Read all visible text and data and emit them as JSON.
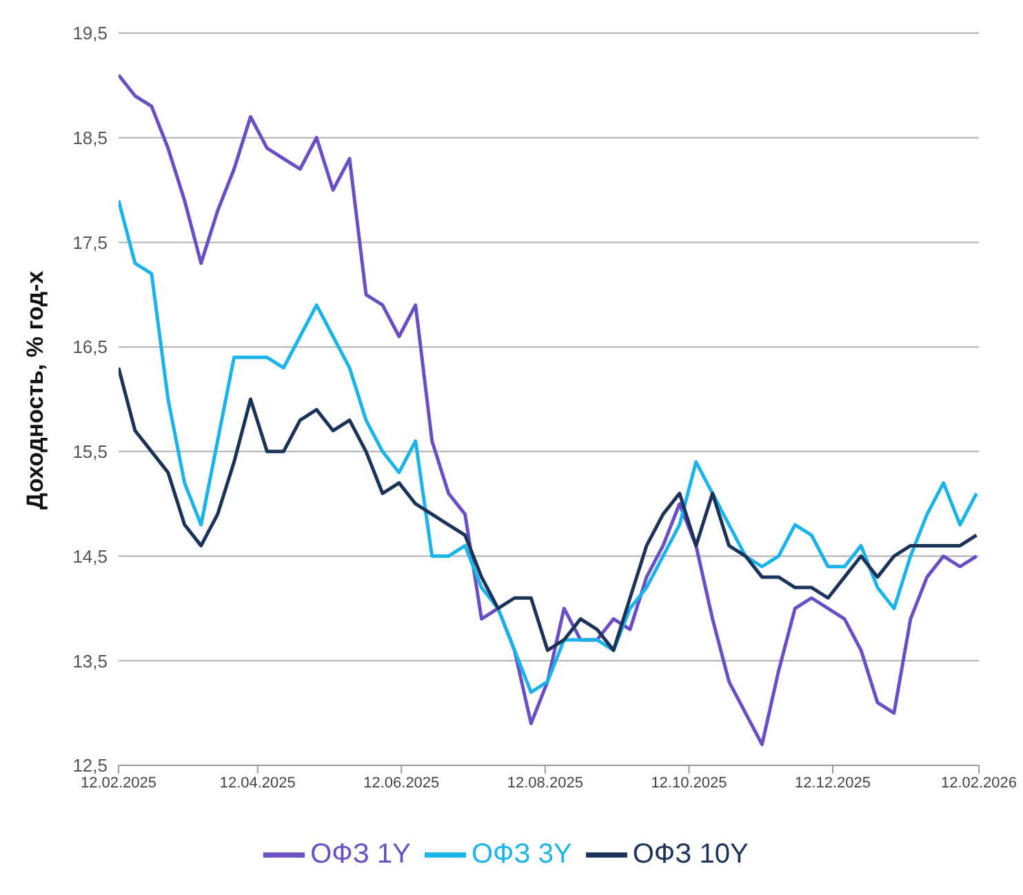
{
  "chart_data": {
    "type": "line",
    "ylabel": "Доходность, % год-х",
    "x": [
      "2025-02-12",
      "2025-02-19",
      "2025-02-26",
      "2025-03-05",
      "2025-03-12",
      "2025-03-19",
      "2025-03-26",
      "2025-04-02",
      "2025-04-09",
      "2025-04-16",
      "2025-04-23",
      "2025-04-30",
      "2025-05-07",
      "2025-05-14",
      "2025-05-21",
      "2025-05-28",
      "2025-06-04",
      "2025-06-11",
      "2025-06-18",
      "2025-06-25",
      "2025-07-02",
      "2025-07-09",
      "2025-07-16",
      "2025-07-23",
      "2025-07-30",
      "2025-08-06",
      "2025-08-13",
      "2025-08-20",
      "2025-08-27",
      "2025-09-03",
      "2025-09-10",
      "2025-09-17",
      "2025-09-24",
      "2025-10-01",
      "2025-10-08",
      "2025-10-15",
      "2025-10-22",
      "2025-10-29",
      "2025-11-05",
      "2025-11-12",
      "2025-11-19",
      "2025-11-26",
      "2025-12-03",
      "2025-12-10",
      "2025-12-17",
      "2025-12-24",
      "2025-12-31",
      "2026-01-07",
      "2026-01-14",
      "2026-01-21",
      "2026-01-28",
      "2026-02-04",
      "2026-02-11"
    ],
    "series": [
      {
        "name": "ОФЗ 1Y",
        "color": "#6a4fc4",
        "values": [
          19.1,
          18.9,
          18.8,
          18.4,
          17.9,
          17.3,
          17.8,
          18.2,
          18.7,
          18.4,
          18.3,
          18.2,
          18.5,
          18.0,
          18.3,
          17.0,
          16.9,
          16.6,
          16.9,
          15.6,
          15.1,
          14.9,
          13.9,
          14.0,
          13.6,
          12.9,
          13.3,
          14.0,
          13.7,
          13.7,
          13.9,
          13.8,
          14.3,
          14.6,
          15.0,
          14.6,
          13.9,
          13.3,
          13.0,
          12.7,
          13.4,
          14.0,
          14.1,
          14.0,
          13.9,
          13.6,
          13.1,
          13.0,
          13.9,
          14.3,
          14.5,
          14.4,
          14.5
        ]
      },
      {
        "name": "ОФЗ 3Y",
        "color": "#1ab4ea",
        "values": [
          17.9,
          17.3,
          17.2,
          16.0,
          15.2,
          14.8,
          15.6,
          16.4,
          16.4,
          16.4,
          16.3,
          16.6,
          16.9,
          16.6,
          16.3,
          15.8,
          15.5,
          15.3,
          15.6,
          14.5,
          14.5,
          14.6,
          14.2,
          14.0,
          13.6,
          13.2,
          13.3,
          13.7,
          13.7,
          13.7,
          13.6,
          14.0,
          14.2,
          14.5,
          14.8,
          15.4,
          15.1,
          14.8,
          14.5,
          14.4,
          14.5,
          14.8,
          14.7,
          14.4,
          14.4,
          14.6,
          14.2,
          14.0,
          14.5,
          14.9,
          15.2,
          14.8,
          15.1
        ]
      },
      {
        "name": "ОФЗ 10Y",
        "color": "#1b3358",
        "values": [
          16.3,
          15.7,
          15.5,
          15.3,
          14.8,
          14.6,
          14.9,
          15.4,
          16.0,
          15.5,
          15.5,
          15.8,
          15.9,
          15.7,
          15.8,
          15.5,
          15.1,
          15.2,
          15.0,
          14.9,
          14.8,
          14.7,
          14.3,
          14.0,
          14.1,
          14.1,
          13.6,
          13.7,
          13.9,
          13.8,
          13.6,
          14.1,
          14.6,
          14.9,
          15.1,
          14.6,
          15.1,
          14.6,
          14.5,
          14.3,
          14.3,
          14.2,
          14.2,
          14.1,
          14.3,
          14.5,
          14.3,
          14.5,
          14.6,
          14.6,
          14.6,
          14.6,
          14.7
        ]
      }
    ],
    "xlim": [
      "2025-02-12",
      "2026-02-12"
    ],
    "xticks": [
      {
        "value": "2025-02-12",
        "label": "12.02.2025"
      },
      {
        "value": "2025-04-12",
        "label": "12.04.2025"
      },
      {
        "value": "2025-06-12",
        "label": "12.06.2025"
      },
      {
        "value": "2025-08-12",
        "label": "12.08.2025"
      },
      {
        "value": "2025-10-12",
        "label": "12.10.2025"
      },
      {
        "value": "2025-12-12",
        "label": "12.12.2025"
      },
      {
        "value": "2026-02-12",
        "label": "12.02.2026"
      }
    ],
    "ylim": [
      12.5,
      19.5
    ],
    "yticks": [
      {
        "value": 12.5,
        "label": "12,5"
      },
      {
        "value": 13.5,
        "label": "13,5"
      },
      {
        "value": 14.5,
        "label": "14,5"
      },
      {
        "value": 15.5,
        "label": "15,5"
      },
      {
        "value": 16.5,
        "label": "16,5"
      },
      {
        "value": 17.5,
        "label": "17,5"
      },
      {
        "value": 18.5,
        "label": "18,5"
      },
      {
        "value": 19.5,
        "label": "19,5"
      }
    ],
    "grid": "y",
    "legend": "bottom",
    "marker": "none",
    "line_style": "solid"
  }
}
